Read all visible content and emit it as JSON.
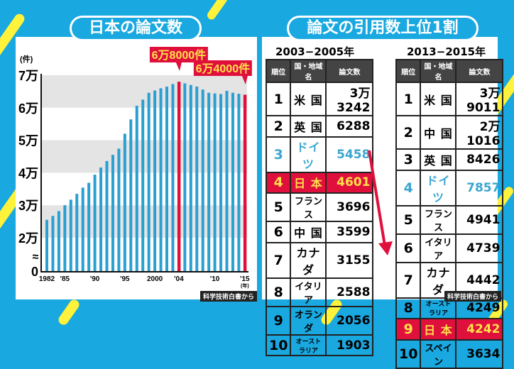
{
  "left_title": "日本の論文数",
  "right_title": "論文の引用数上位1割",
  "chart_data": {
    "type": "bar",
    "title": "日本の論文数",
    "ylabel": "(件)",
    "xlabel": "(年)",
    "ylim": [
      0,
      70000
    ],
    "axis_break": "≈",
    "yticks": [
      {
        "v": 0,
        "label": "0"
      },
      {
        "v": 20000,
        "label": "2万"
      },
      {
        "v": 30000,
        "label": "3万"
      },
      {
        "v": 40000,
        "label": "4万"
      },
      {
        "v": 50000,
        "label": "5万"
      },
      {
        "v": 60000,
        "label": "6万"
      },
      {
        "v": 70000,
        "label": "7万"
      }
    ],
    "xticks": [
      {
        "year": 1982,
        "label": "1982"
      },
      {
        "year": 1985,
        "label": "'85"
      },
      {
        "year": 1990,
        "label": "'90"
      },
      {
        "year": 1995,
        "label": "'95"
      },
      {
        "year": 2000,
        "label": "2000"
      },
      {
        "year": 2004,
        "label": "'04"
      },
      {
        "year": 2010,
        "label": "'10"
      },
      {
        "year": 2015,
        "label": "'15"
      }
    ],
    "x": [
      1982,
      1983,
      1984,
      1985,
      1986,
      1987,
      1988,
      1989,
      1990,
      1991,
      1992,
      1993,
      1994,
      1995,
      1996,
      1997,
      1998,
      1999,
      2000,
      2001,
      2002,
      2003,
      2004,
      2005,
      2006,
      2007,
      2008,
      2009,
      2010,
      2011,
      2012,
      2013,
      2014,
      2015
    ],
    "values": [
      25500,
      26700,
      28200,
      30000,
      31700,
      33500,
      35400,
      36900,
      39400,
      41600,
      43600,
      45500,
      47400,
      52000,
      56400,
      60600,
      62500,
      64600,
      65300,
      66000,
      66500,
      67300,
      68000,
      67500,
      67000,
      66500,
      65600,
      64600,
      64400,
      64200,
      65200,
      64600,
      64300,
      64000
    ],
    "highlights": [
      {
        "year": 2004,
        "label": "6万8000件"
      },
      {
        "year": 2015,
        "label": "6万4000件"
      }
    ],
    "colors": {
      "bar": "#2a9fd2",
      "highlight": "#e0103c",
      "band": "#e4e4e4"
    }
  },
  "headers": [
    "順位",
    "国・地域名",
    "論文数"
  ],
  "table_left": {
    "period": "2003−2005年",
    "rows": [
      [
        "1",
        "米 国",
        "3万3242"
      ],
      [
        "2",
        "英 国",
        "6288"
      ],
      [
        "3",
        "ドイツ",
        "5458"
      ],
      [
        "4",
        "日 本",
        "4601"
      ],
      [
        "5",
        "フランス",
        "3696"
      ],
      [
        "6",
        "中 国",
        "3599"
      ],
      [
        "7",
        "カナダ",
        "3155"
      ],
      [
        "8",
        "イタリア",
        "2588"
      ],
      [
        "9",
        "オランダ",
        "2056"
      ],
      [
        "10",
        "オーストラリア",
        "1903"
      ]
    ]
  },
  "table_right": {
    "period": "2013−2015年",
    "rows": [
      [
        "1",
        "米 国",
        "3万9011"
      ],
      [
        "2",
        "中 国",
        "2万1016"
      ],
      [
        "3",
        "英 国",
        "8426"
      ],
      [
        "4",
        "ドイツ",
        "7857"
      ],
      [
        "5",
        "フランス",
        "4941"
      ],
      [
        "6",
        "イタリア",
        "4739"
      ],
      [
        "7",
        "カナダ",
        "4442"
      ],
      [
        "8",
        "オーストラリア",
        "4249"
      ],
      [
        "9",
        "日 本",
        "4242"
      ],
      [
        "10",
        "スペイン",
        "3634"
      ]
    ]
  },
  "source": "科学技術白書から"
}
